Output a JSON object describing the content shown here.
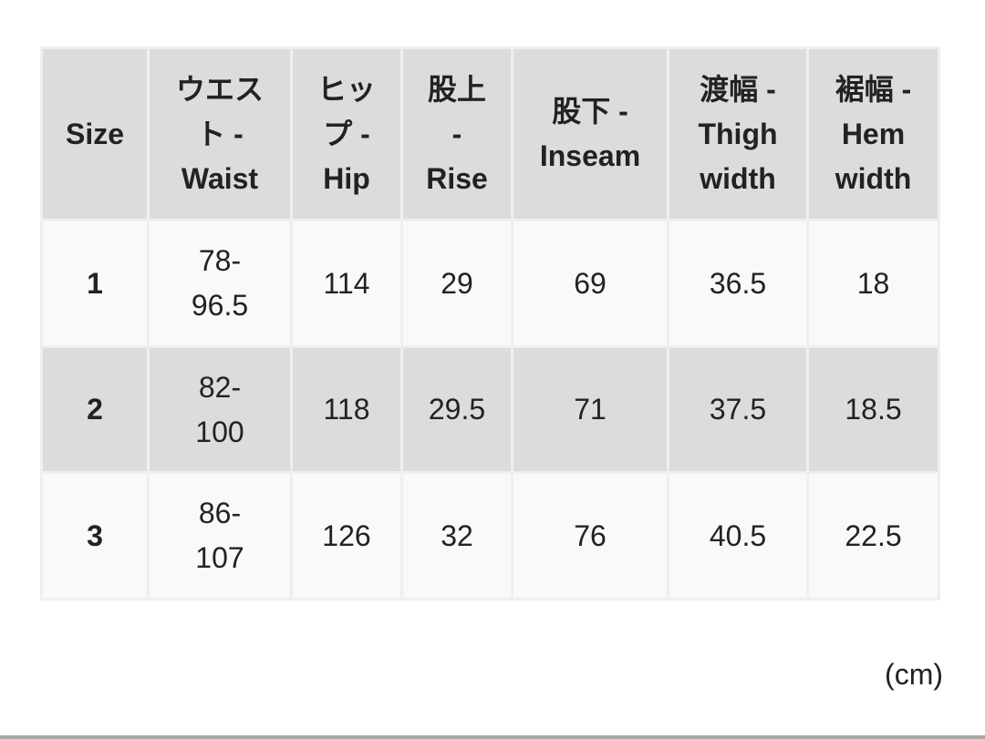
{
  "table": {
    "headers": [
      [
        "Size"
      ],
      [
        "ウエス",
        "ト -",
        "Waist"
      ],
      [
        "ヒッ",
        "プ -",
        "Hip"
      ],
      [
        "股上",
        "-",
        "Rise"
      ],
      [
        "股下 -",
        "Inseam"
      ],
      [
        "渡幅 -",
        "Thigh",
        "width"
      ],
      [
        "裾幅 -",
        "Hem",
        "width"
      ]
    ],
    "rows": [
      [
        "1",
        "78-\n96.5",
        "114",
        "29",
        "69",
        "36.5",
        "18"
      ],
      [
        "2",
        "82-\n100",
        "118",
        "29.5",
        "71",
        "37.5",
        "18.5"
      ],
      [
        "3",
        "86-\n107",
        "126",
        "32",
        "76",
        "40.5",
        "22.5"
      ]
    ]
  },
  "unit_label": "(cm)",
  "colors": {
    "header_bg": "#dcdcdc",
    "row_alt_bg": "#dcdcdc",
    "row_bg": "#f9f9f9",
    "text": "#222222"
  }
}
